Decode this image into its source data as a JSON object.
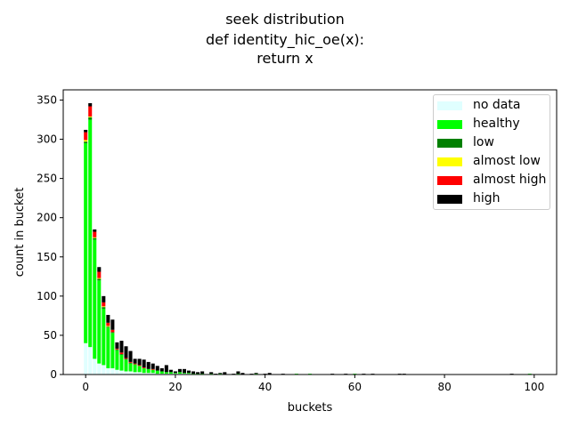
{
  "chart_data": {
    "type": "bar",
    "stacked": true,
    "title_lines": [
      "seek distribution",
      "def identity_hic_oe(x):",
      "return x"
    ],
    "xlabel": "buckets",
    "ylabel": "count in bucket",
    "xlim": [
      -5,
      105
    ],
    "ylim": [
      0,
      363
    ],
    "xticks": [
      0,
      20,
      40,
      60,
      80,
      100
    ],
    "yticks": [
      0,
      50,
      100,
      150,
      200,
      250,
      300,
      350
    ],
    "legend_position": "top-right",
    "grid": false,
    "x": [
      0,
      1,
      2,
      3,
      4,
      5,
      6,
      7,
      8,
      9,
      10,
      11,
      12,
      13,
      14,
      15,
      16,
      17,
      18,
      19,
      20,
      21,
      22,
      23,
      24,
      25,
      26,
      28,
      29,
      30,
      31,
      33,
      34,
      35,
      37,
      38,
      40,
      41,
      44,
      47,
      50,
      55,
      58,
      60,
      62,
      64,
      70,
      71,
      95,
      99
    ],
    "series": [
      {
        "name": "no data",
        "color": "#e0ffff",
        "values": [
          40,
          35,
          20,
          14,
          12,
          8,
          8,
          6,
          5,
          4,
          4,
          3,
          3,
          2,
          2,
          2,
          1,
          1,
          1,
          1,
          1,
          1,
          1,
          1,
          0,
          0,
          0,
          0,
          0,
          0,
          0,
          0,
          0,
          0,
          0,
          0,
          0,
          0,
          0,
          0,
          0,
          0,
          0,
          0,
          0,
          0,
          0,
          0,
          0,
          0
        ]
      },
      {
        "name": "healthy",
        "color": "#00ff00",
        "values": [
          255,
          290,
          152,
          106,
          72,
          52,
          45,
          25,
          20,
          15,
          10,
          10,
          8,
          6,
          5,
          4,
          4,
          3,
          2,
          2,
          1,
          2,
          1,
          1,
          1,
          1,
          1,
          1,
          0,
          1,
          0,
          0,
          1,
          0,
          0,
          1,
          0,
          0,
          0,
          1,
          1,
          0,
          0,
          1,
          0,
          0,
          0,
          0,
          0,
          1
        ]
      },
      {
        "name": "low",
        "color": "#008000",
        "values": [
          2,
          3,
          2,
          2,
          2,
          1,
          1,
          1,
          1,
          1,
          1,
          0,
          0,
          0,
          0,
          0,
          0,
          0,
          0,
          0,
          0,
          0,
          0,
          0,
          0,
          0,
          0,
          0,
          0,
          0,
          0,
          0,
          0,
          0,
          0,
          0,
          0,
          0,
          0,
          0,
          0,
          0,
          0,
          0,
          0,
          0,
          0,
          0,
          0,
          0
        ]
      },
      {
        "name": "almost low",
        "color": "#ffff00",
        "values": [
          2,
          1,
          1,
          1,
          1,
          1,
          0,
          0,
          0,
          0,
          0,
          0,
          0,
          0,
          0,
          0,
          0,
          0,
          0,
          0,
          0,
          0,
          0,
          0,
          0,
          0,
          0,
          0,
          0,
          0,
          0,
          0,
          0,
          0,
          0,
          0,
          0,
          0,
          0,
          0,
          0,
          0,
          0,
          0,
          0,
          0,
          0,
          0,
          0,
          0
        ]
      },
      {
        "name": "almost high",
        "color": "#ff0000",
        "values": [
          10,
          13,
          7,
          8,
          5,
          4,
          3,
          1,
          2,
          1,
          1,
          1,
          1,
          1,
          0,
          1,
          0,
          0,
          0,
          0,
          0,
          0,
          0,
          0,
          0,
          0,
          0,
          0,
          0,
          0,
          0,
          0,
          0,
          0,
          0,
          0,
          0,
          0,
          0,
          0,
          0,
          0,
          0,
          0,
          0,
          0,
          0,
          0,
          0,
          0
        ]
      },
      {
        "name": "high",
        "color": "#000000",
        "values": [
          3,
          4,
          3,
          6,
          8,
          10,
          13,
          8,
          15,
          15,
          14,
          6,
          8,
          10,
          9,
          7,
          6,
          4,
          9,
          3,
          2,
          4,
          5,
          3,
          3,
          2,
          3,
          2,
          1,
          1,
          3,
          1,
          3,
          2,
          1,
          1,
          1,
          2,
          1,
          0,
          0,
          1,
          1,
          0,
          1,
          1,
          1,
          1,
          1,
          0
        ]
      }
    ]
  }
}
